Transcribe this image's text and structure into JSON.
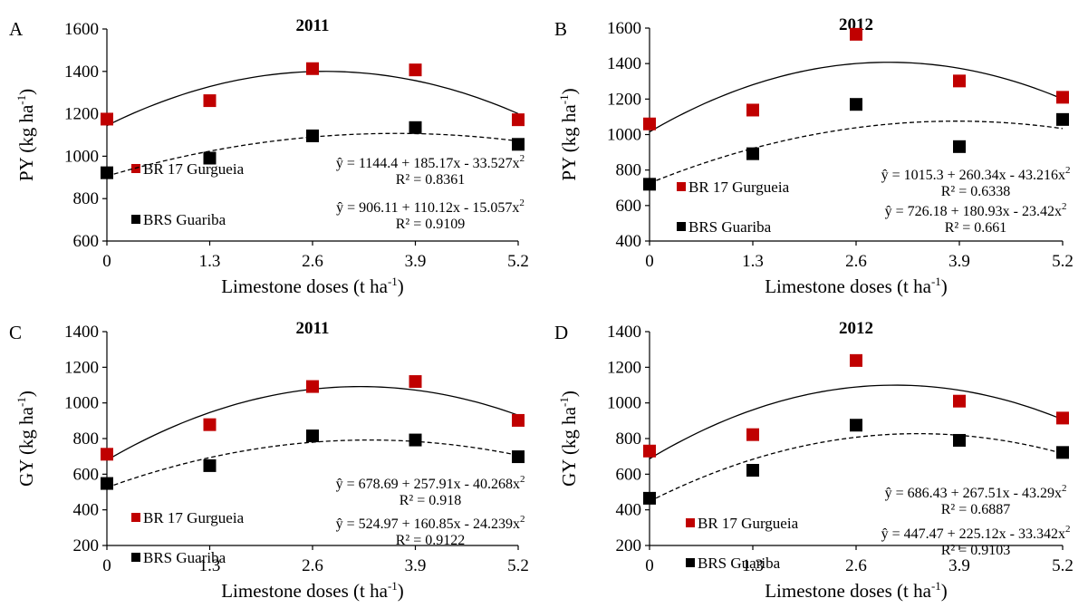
{
  "colors": {
    "series1": "#c00000",
    "series2": "#000000"
  },
  "chart_data": [
    {
      "panel": "A",
      "type": "scatter",
      "title": "2011",
      "ylabel": "PY (kg ha",
      "ylabel_sup": "-1",
      "ylabel_end": ")",
      "xlabel": "Limestone doses (t ha",
      "xlabel_sup": "-1",
      "xlabel_end": ")",
      "x": [
        0,
        1.3,
        2.6,
        3.9,
        5.2
      ],
      "x_ticks": [
        "0",
        "1.3",
        "2.6",
        "3.9",
        "5.2"
      ],
      "ylim": [
        600,
        1600
      ],
      "y_ticks": [
        600,
        800,
        1000,
        1200,
        1400,
        1600
      ],
      "series": [
        {
          "name": "BR 17 Gurgueia",
          "values": [
            1175,
            1262,
            1413,
            1407,
            1172
          ],
          "fit": [
            1144.4,
            185.17,
            -33.527
          ],
          "line": "solid",
          "equation": "ŷ = 1144.4 + 185.17x - 33.527x",
          "eq_sup": "2",
          "r2": "R² = 0.8361"
        },
        {
          "name": "BRS Guariba",
          "values": [
            922,
            991,
            1096,
            1135,
            1056
          ],
          "fit": [
            906.11,
            110.12,
            -15.057
          ],
          "line": "dashed",
          "equation": "ŷ = 906.11 + 110.12x - 15.057x",
          "eq_sup": "2",
          "r2": "R² = 0.9109"
        }
      ]
    },
    {
      "panel": "B",
      "type": "scatter",
      "title": "2012",
      "ylabel": "PY (kg ha",
      "ylabel_sup": "-1",
      "ylabel_end": ")",
      "xlabel": "Limestone doses (t ha",
      "xlabel_sup": "-1",
      "xlabel_end": ")",
      "x": [
        0,
        1.3,
        2.6,
        3.9,
        5.2
      ],
      "x_ticks": [
        "0",
        "1.3",
        "2.6",
        "3.9",
        "5.2"
      ],
      "ylim": [
        400,
        1600
      ],
      "y_ticks": [
        400,
        600,
        800,
        1000,
        1200,
        1400,
        1600
      ],
      "series": [
        {
          "name": "BR 17 Gurgueia",
          "values": [
            1060,
            1138,
            1565,
            1302,
            1210
          ],
          "fit": [
            1015.3,
            260.34,
            -43.216
          ],
          "line": "solid",
          "equation": "ŷ = 1015.3 + 260.34x - 43.216x",
          "eq_sup": "2",
          "r2": "R² = 0.6338"
        },
        {
          "name": "BRS Guariba",
          "values": [
            720,
            892,
            1170,
            932,
            1085
          ],
          "fit": [
            726.18,
            180.93,
            -23.42
          ],
          "line": "dashed",
          "equation": "ŷ = 726.18 + 180.93x - 23.42x",
          "eq_sup": "2",
          "r2": "R² = 0.661"
        }
      ]
    },
    {
      "panel": "C",
      "type": "scatter",
      "title": "2011",
      "ylabel": "GY (kg ha",
      "ylabel_sup": "-1",
      "ylabel_end": ")",
      "xlabel": "Limestone doses (t ha",
      "xlabel_sup": "-1",
      "xlabel_end": ")",
      "x": [
        0,
        1.3,
        2.6,
        3.9,
        5.2
      ],
      "x_ticks": [
        "0",
        "1.3",
        "2.6",
        "3.9",
        "5.2"
      ],
      "ylim": [
        200,
        1400
      ],
      "y_ticks": [
        200,
        400,
        600,
        800,
        1000,
        1200,
        1400
      ],
      "series": [
        {
          "name": "BR 17 Gurgueia",
          "values": [
            712,
            878,
            1092,
            1120,
            902
          ],
          "fit": [
            678.69,
            257.91,
            -40.268
          ],
          "line": "solid",
          "equation": "ŷ = 678.69 + 257.91x - 40.268x",
          "eq_sup": "2",
          "r2": "R² = 0.918"
        },
        {
          "name": "BRS Guariba",
          "values": [
            548,
            648,
            815,
            792,
            698
          ],
          "fit": [
            524.97,
            160.85,
            -24.239
          ],
          "line": "dashed",
          "equation": "ŷ = 524.97 + 160.85x - 24.239x",
          "eq_sup": "2",
          "r2": "R² = 0.9122"
        }
      ]
    },
    {
      "panel": "D",
      "type": "scatter",
      "title": "2012",
      "ylabel": "GY (kg ha",
      "ylabel_sup": "-1",
      "ylabel_end": ")",
      "xlabel": "Limestone doses (t ha",
      "xlabel_sup": "-1",
      "xlabel_end": ")",
      "x": [
        0,
        1.3,
        2.6,
        3.9,
        5.2
      ],
      "x_ticks": [
        "0",
        "1.3",
        "2.6",
        "3.9",
        "5.2"
      ],
      "ylim": [
        200,
        1400
      ],
      "y_ticks": [
        200,
        400,
        600,
        800,
        1000,
        1200,
        1400
      ],
      "series": [
        {
          "name": "BR 17 Gurgueia",
          "values": [
            730,
            822,
            1238,
            1010,
            915
          ],
          "fit": [
            686.43,
            267.51,
            -43.29
          ],
          "line": "solid",
          "equation": "ŷ = 686.43 + 267.51x - 43.29x",
          "eq_sup": "2",
          "r2": "R² = 0.6887"
        },
        {
          "name": "BRS Guariba",
          "values": [
            465,
            622,
            875,
            790,
            722
          ],
          "fit": [
            447.47,
            225.12,
            -33.342
          ],
          "line": "dashed",
          "equation": "ŷ = 447.47 + 225.12x - 33.342x",
          "eq_sup": "2",
          "r2": "R² = 0.9103"
        }
      ]
    }
  ]
}
